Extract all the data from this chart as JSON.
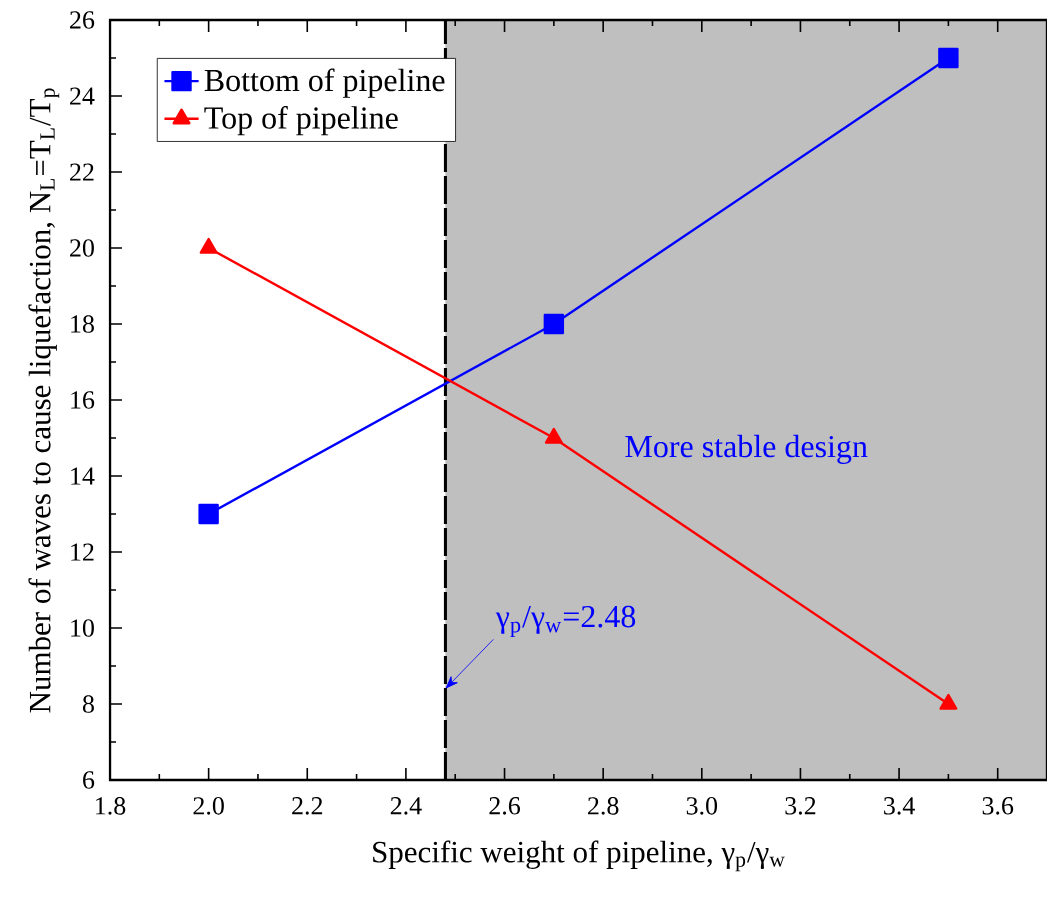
{
  "chart_data": {
    "type": "line",
    "xlabel": "Specific weight of pipeline,  γ$_{p}$/γ$_{w}$",
    "ylabel": "Number of waves to cause liquefaction, N$_{L}$=T$_{L}$/T$_{p}$",
    "series": [
      {
        "name": "Bottom of pipeline",
        "color": "#0000ff",
        "marker": "square",
        "x": [
          2.0,
          2.7,
          3.5
        ],
        "values": [
          13,
          18,
          25
        ]
      },
      {
        "name": "Top of pipeline",
        "color": "#ff0000",
        "marker": "triangle",
        "x": [
          2.0,
          2.7,
          3.5
        ],
        "values": [
          20,
          15,
          8
        ]
      }
    ],
    "xlim": [
      1.8,
      3.7
    ],
    "ylim": [
      6,
      26
    ],
    "xticks": [
      1.8,
      {
        "value": 2.0,
        "label": "2.0"
      },
      2.2,
      2.4,
      2.6,
      2.8,
      {
        "value": 3.0,
        "label": "3.0"
      },
      3.2,
      3.4,
      3.6
    ],
    "yticks": [
      6,
      8,
      10,
      12,
      14,
      16,
      18,
      20,
      22,
      24,
      26
    ],
    "ref_lines": [
      {
        "axis": "x",
        "value": 2.48,
        "label": "γ$_{p}$/γ$_{w}$=2.48",
        "color": "#000000",
        "line_style": "dashed"
      }
    ],
    "bands": [
      {
        "axis": "x",
        "from": 2.48,
        "to": 3.7,
        "label": "More stable design",
        "color": "#bfbfbf"
      }
    ],
    "legend": "top left",
    "line_style": "solid"
  }
}
